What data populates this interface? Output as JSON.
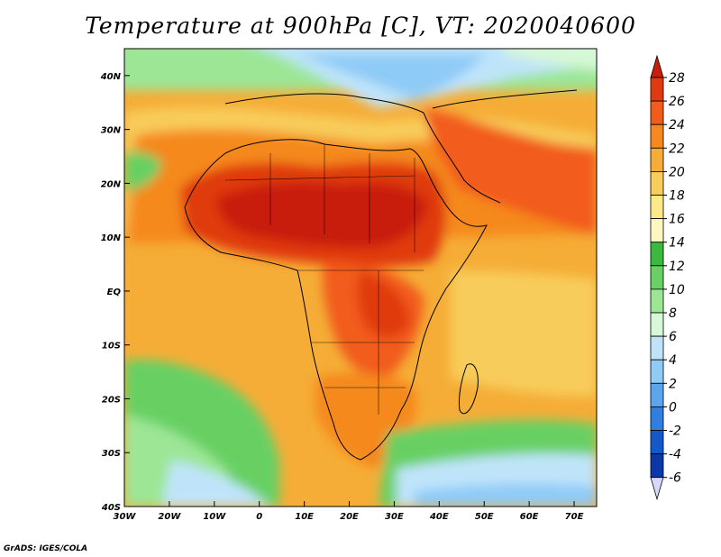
{
  "title": "Temperature at 900hPa [C], VT: 2020040600",
  "credit": "GrADS: IGES/COLA",
  "map": {
    "lon_range": [
      -30,
      75
    ],
    "lat_range": [
      -40,
      45
    ],
    "lon_ticks": [
      {
        "value": -30,
        "label": "30W"
      },
      {
        "value": -20,
        "label": "20W"
      },
      {
        "value": -10,
        "label": "10W"
      },
      {
        "value": 0,
        "label": "0"
      },
      {
        "value": 10,
        "label": "10E"
      },
      {
        "value": 20,
        "label": "20E"
      },
      {
        "value": 30,
        "label": "30E"
      },
      {
        "value": 40,
        "label": "40E"
      },
      {
        "value": 50,
        "label": "50E"
      },
      {
        "value": 60,
        "label": "60E"
      },
      {
        "value": 70,
        "label": "70E"
      }
    ],
    "lat_ticks": [
      {
        "value": 40,
        "label": "40N"
      },
      {
        "value": 30,
        "label": "30N"
      },
      {
        "value": 20,
        "label": "20N"
      },
      {
        "value": 10,
        "label": "10N"
      },
      {
        "value": 0,
        "label": "EQ"
      },
      {
        "value": -10,
        "label": "10S"
      },
      {
        "value": -20,
        "label": "20S"
      },
      {
        "value": -30,
        "label": "30S"
      },
      {
        "value": -40,
        "label": "40S"
      }
    ]
  },
  "colorbar": {
    "levels": [
      "28",
      "26",
      "24",
      "22",
      "20",
      "18",
      "16",
      "14",
      "12",
      "10",
      "8",
      "6",
      "4",
      "2",
      "0",
      "-2",
      "-4",
      "-6"
    ],
    "colors": [
      "#e03a10",
      "#f25c1a",
      "#f5891f",
      "#f5ad37",
      "#f8cc5a",
      "#fbe98a",
      "#fdf8c0",
      "#3cb83c",
      "#68d064",
      "#9ce696",
      "#d6f8d6",
      "#bfe4fa",
      "#8fcbf7",
      "#5aa6ee",
      "#2f7ee0",
      "#1459c8",
      "#0a38a8",
      "#0a1a78"
    ],
    "top_color": "#c81e0a",
    "bottom_color": "#d8d8f8"
  }
}
